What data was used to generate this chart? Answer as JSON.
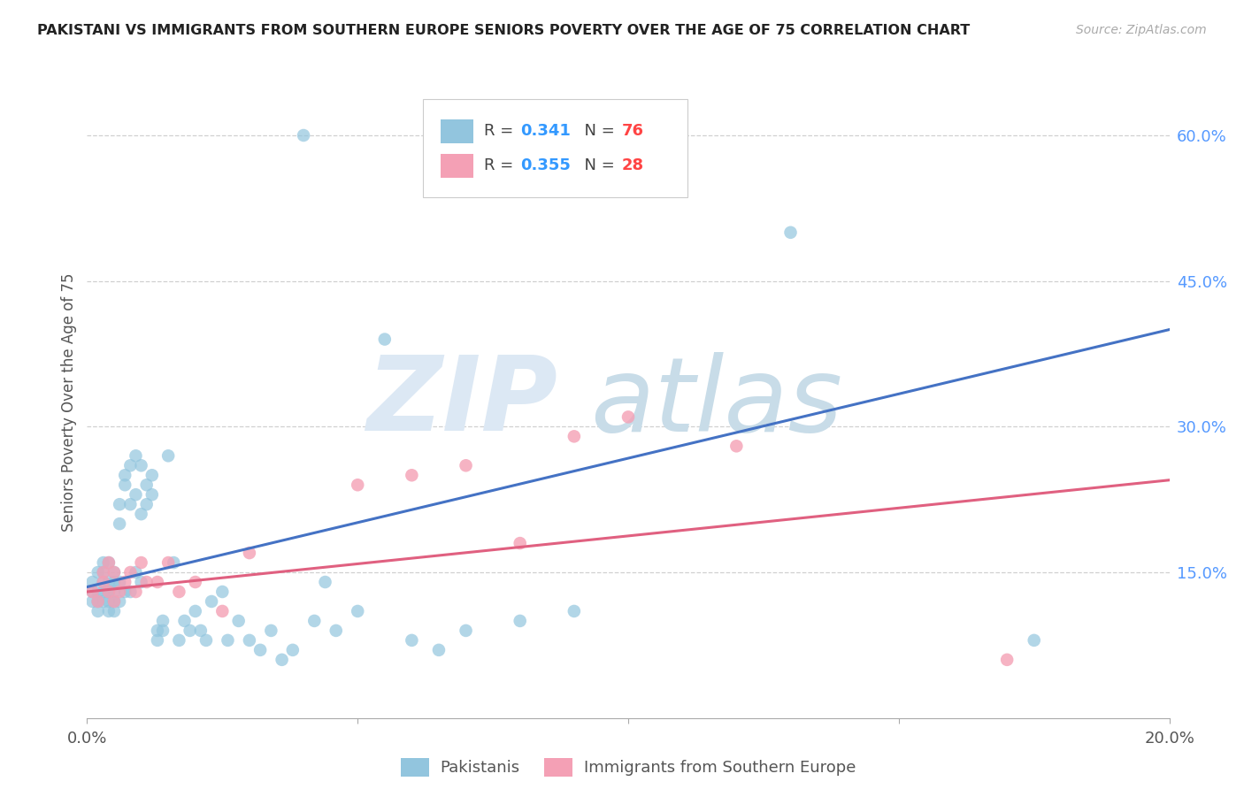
{
  "title": "PAKISTANI VS IMMIGRANTS FROM SOUTHERN EUROPE SENIORS POVERTY OVER THE AGE OF 75 CORRELATION CHART",
  "source": "Source: ZipAtlas.com",
  "ylabel": "Seniors Poverty Over the Age of 75",
  "x_min": 0.0,
  "x_max": 0.2,
  "y_min": 0.0,
  "y_max": 0.65,
  "blue_color": "#92c5de",
  "pink_color": "#f4a0b5",
  "blue_line_color": "#4472c4",
  "pink_line_color": "#e06080",
  "r_color": "#3399ff",
  "n_color": "#ff4444",
  "grid_color": "#d0d0d0",
  "legend_r1": "0.341",
  "legend_n1": "76",
  "legend_r2": "0.355",
  "legend_n2": "28",
  "pak_x": [
    0.001,
    0.001,
    0.001,
    0.002,
    0.002,
    0.002,
    0.002,
    0.003,
    0.003,
    0.003,
    0.003,
    0.003,
    0.004,
    0.004,
    0.004,
    0.004,
    0.004,
    0.005,
    0.005,
    0.005,
    0.005,
    0.005,
    0.006,
    0.006,
    0.006,
    0.006,
    0.007,
    0.007,
    0.007,
    0.008,
    0.008,
    0.008,
    0.009,
    0.009,
    0.009,
    0.01,
    0.01,
    0.01,
    0.011,
    0.011,
    0.012,
    0.012,
    0.013,
    0.013,
    0.014,
    0.014,
    0.015,
    0.016,
    0.017,
    0.018,
    0.019,
    0.02,
    0.021,
    0.022,
    0.023,
    0.025,
    0.026,
    0.028,
    0.03,
    0.032,
    0.034,
    0.036,
    0.038,
    0.04,
    0.042,
    0.044,
    0.046,
    0.05,
    0.055,
    0.06,
    0.065,
    0.07,
    0.08,
    0.09,
    0.13,
    0.175
  ],
  "pak_y": [
    0.12,
    0.13,
    0.14,
    0.11,
    0.12,
    0.13,
    0.15,
    0.12,
    0.13,
    0.14,
    0.15,
    0.16,
    0.11,
    0.12,
    0.13,
    0.14,
    0.16,
    0.11,
    0.12,
    0.13,
    0.14,
    0.15,
    0.12,
    0.14,
    0.2,
    0.22,
    0.13,
    0.24,
    0.25,
    0.13,
    0.22,
    0.26,
    0.15,
    0.23,
    0.27,
    0.14,
    0.21,
    0.26,
    0.24,
    0.22,
    0.25,
    0.23,
    0.08,
    0.09,
    0.1,
    0.09,
    0.27,
    0.16,
    0.08,
    0.1,
    0.09,
    0.11,
    0.09,
    0.08,
    0.12,
    0.13,
    0.08,
    0.1,
    0.08,
    0.07,
    0.09,
    0.06,
    0.07,
    0.6,
    0.1,
    0.14,
    0.09,
    0.11,
    0.39,
    0.08,
    0.07,
    0.09,
    0.1,
    0.11,
    0.5,
    0.08
  ],
  "se_x": [
    0.001,
    0.002,
    0.003,
    0.003,
    0.004,
    0.004,
    0.005,
    0.005,
    0.006,
    0.007,
    0.008,
    0.009,
    0.01,
    0.011,
    0.013,
    0.015,
    0.017,
    0.02,
    0.025,
    0.03,
    0.05,
    0.06,
    0.07,
    0.08,
    0.09,
    0.1,
    0.12,
    0.17
  ],
  "se_y": [
    0.13,
    0.12,
    0.14,
    0.15,
    0.13,
    0.16,
    0.12,
    0.15,
    0.13,
    0.14,
    0.15,
    0.13,
    0.16,
    0.14,
    0.14,
    0.16,
    0.13,
    0.14,
    0.11,
    0.17,
    0.24,
    0.25,
    0.26,
    0.18,
    0.29,
    0.31,
    0.28,
    0.06
  ],
  "pak_line_x0": 0.0,
  "pak_line_y0": 0.135,
  "pak_line_x1": 0.2,
  "pak_line_y1": 0.4,
  "se_line_x0": 0.0,
  "se_line_y0": 0.13,
  "se_line_x1": 0.2,
  "se_line_y1": 0.245
}
